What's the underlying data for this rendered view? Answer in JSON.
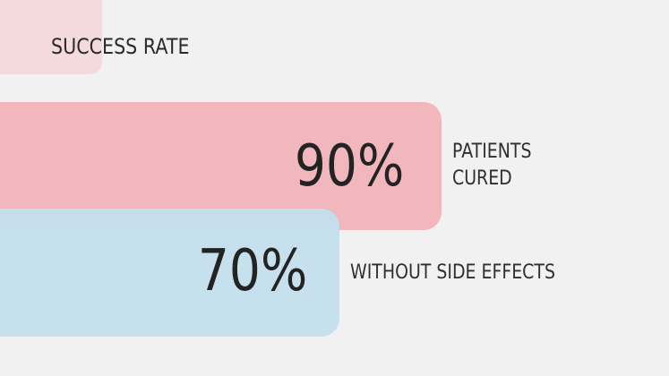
{
  "chart_data": {
    "type": "bar",
    "orientation": "horizontal",
    "title": "SUCCESS RATE",
    "xlim": [
      0,
      100
    ],
    "bars": [
      {
        "value": 90,
        "value_label": "90%",
        "label_lines": [
          "PATIENTS",
          "CURED"
        ],
        "color": "#f2b7bd"
      },
      {
        "value": 70,
        "value_label": "70%",
        "label_lines": [
          "WITHOUT SIDE EFFECTS"
        ],
        "color": "#c4e0ec"
      }
    ]
  },
  "colors": {
    "background": "#f1f1f1",
    "decoration": "#f4d9dd",
    "text": "#232323"
  }
}
